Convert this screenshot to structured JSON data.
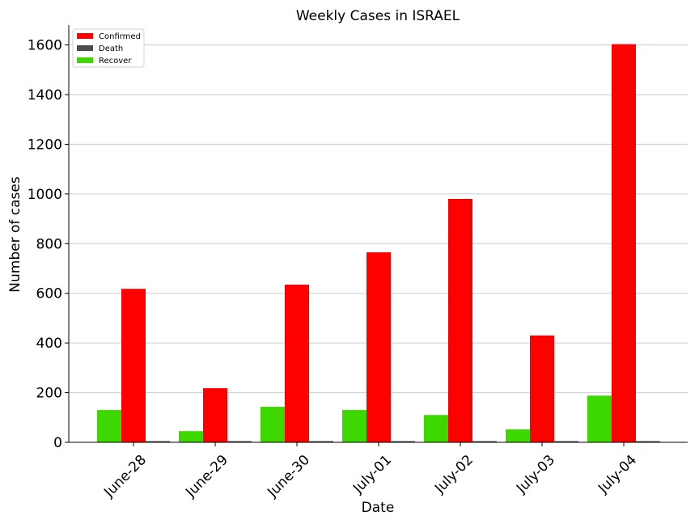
{
  "chart_data": {
    "type": "bar",
    "title": "Weekly Cases in ISRAEL",
    "xlabel": "Date",
    "ylabel": "Number of cases",
    "categories": [
      "June-28",
      "June-29",
      "June-30",
      "July-01",
      "July-02",
      "July-03",
      "July-04"
    ],
    "series": [
      {
        "name": "Recover",
        "color": "#3dd800",
        "values": [
          130,
          45,
          143,
          130,
          110,
          52,
          188
        ]
      },
      {
        "name": "Confirmed",
        "color": "#ff0000",
        "values": [
          618,
          218,
          635,
          765,
          980,
          430,
          1603
        ]
      },
      {
        "name": "Death",
        "color": "#4d4d4d",
        "values": [
          1,
          0,
          0,
          0,
          0,
          1,
          1
        ]
      }
    ],
    "legend_order": [
      "Confirmed",
      "Death",
      "Recover"
    ],
    "legend_position": "top-left",
    "ylim": [
      0,
      1680
    ],
    "yticks": [
      0,
      200,
      400,
      600,
      800,
      1000,
      1200,
      1400,
      1600
    ],
    "grid": "horizontal"
  }
}
